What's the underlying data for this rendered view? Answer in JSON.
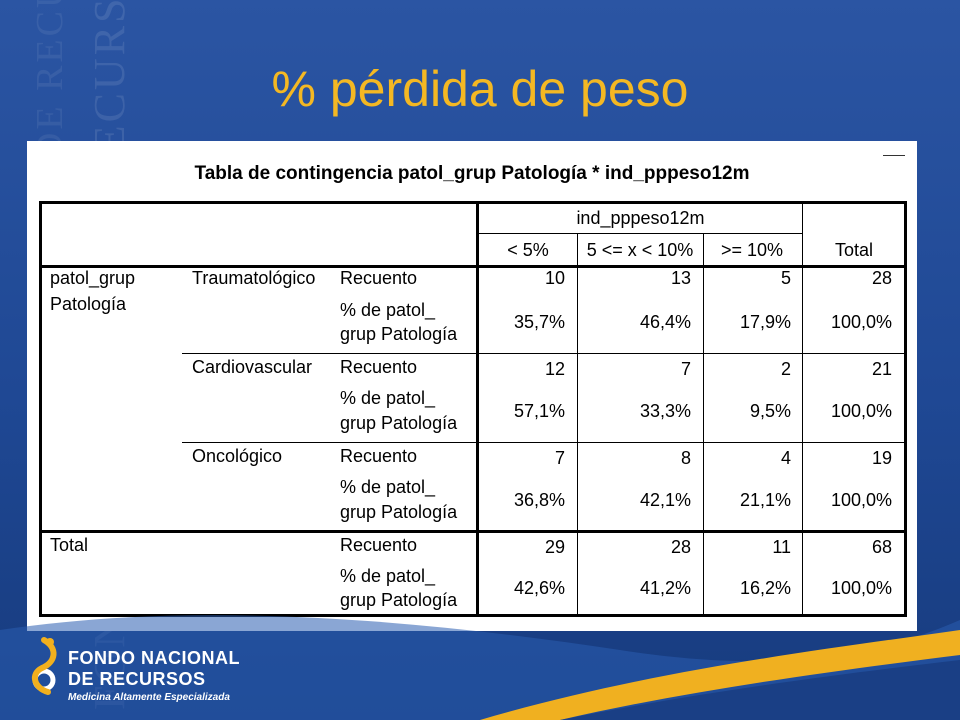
{
  "slide": {
    "title": "% pérdida de peso",
    "watermark_line1": "FONDO NACIONAL DE RECURSOS",
    "watermark_line2": "FONDO NACIONAL DE RECURSOS"
  },
  "table": {
    "title": "Tabla de contingencia patol_grup  Patología * ind_pppeso12m",
    "column_group": "ind_pppeso12m",
    "columns": [
      "< 5%",
      "5 <= x < 10%",
      ">= 10%",
      "Total"
    ],
    "row_var_line1": "patol_grup",
    "row_var_line2": "Patología",
    "count_label": "Recuento",
    "pct_label_line1": "% de patol_",
    "pct_label_line2": "grup  Patología",
    "groups": [
      {
        "name": "Traumatológico",
        "count": [
          "10",
          "13",
          "5",
          "28"
        ],
        "pct": [
          "35,7%",
          "46,4%",
          "17,9%",
          "100,0%"
        ]
      },
      {
        "name": "Cardiovascular",
        "count": [
          "12",
          "7",
          "2",
          "21"
        ],
        "pct": [
          "57,1%",
          "33,3%",
          "9,5%",
          "100,0%"
        ]
      },
      {
        "name": "Oncológico",
        "count": [
          "7",
          "8",
          "4",
          "19"
        ],
        "pct": [
          "36,8%",
          "42,1%",
          "21,1%",
          "100,0%"
        ]
      }
    ],
    "total": {
      "name": "Total",
      "count": [
        "29",
        "28",
        "11",
        "68"
      ],
      "pct": [
        "42,6%",
        "41,2%",
        "16,2%",
        "100,0%"
      ]
    }
  },
  "logo": {
    "line1": "FONDO NACIONAL",
    "line2": "DE RECURSOS",
    "tagline": "Medicina Altamente Especializada"
  },
  "colors": {
    "background": "#1d4592",
    "title": "#f4b823",
    "accent_wave": "#f0b020"
  }
}
